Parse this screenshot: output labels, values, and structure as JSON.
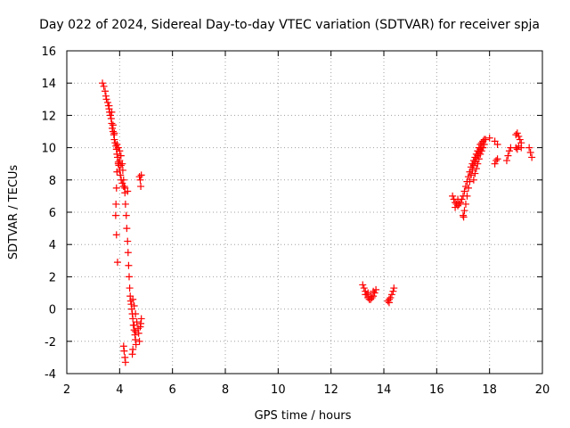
{
  "chart_data": {
    "type": "scatter",
    "title": "Day 022 of 2024, Sidereal Day-to-day VTEC variation (SDTVAR) for receiver spja",
    "xlabel": "GPS time / hours",
    "ylabel": "SDTVAR / TECUs",
    "xlim": [
      2,
      20
    ],
    "ylim": [
      -4,
      16
    ],
    "xticks": [
      2,
      4,
      6,
      8,
      10,
      12,
      14,
      16,
      18,
      20
    ],
    "yticks": [
      -4,
      -2,
      0,
      2,
      4,
      6,
      8,
      10,
      12,
      14,
      16
    ],
    "grid": true,
    "marker": "+",
    "color": "#ff0000",
    "series": [
      {
        "name": "SDTVAR",
        "points": [
          [
            3.35,
            14.0
          ],
          [
            3.4,
            13.8
          ],
          [
            3.45,
            13.5
          ],
          [
            3.48,
            13.2
          ],
          [
            3.5,
            13.0
          ],
          [
            3.55,
            12.8
          ],
          [
            3.58,
            12.6
          ],
          [
            3.6,
            12.4
          ],
          [
            3.62,
            12.2
          ],
          [
            3.65,
            12.0
          ],
          [
            3.68,
            11.8
          ],
          [
            3.7,
            11.5
          ],
          [
            3.72,
            11.2
          ],
          [
            3.75,
            11.0
          ],
          [
            3.78,
            10.8
          ],
          [
            3.8,
            10.5
          ],
          [
            3.83,
            10.3
          ],
          [
            3.86,
            10.1
          ],
          [
            3.88,
            9.9
          ],
          [
            3.9,
            9.6
          ],
          [
            3.92,
            9.4
          ],
          [
            3.95,
            9.1
          ],
          [
            3.97,
            8.9
          ],
          [
            4.0,
            8.6
          ],
          [
            4.03,
            8.3
          ],
          [
            4.06,
            8.0
          ],
          [
            4.1,
            7.8
          ],
          [
            4.15,
            7.6
          ],
          [
            4.2,
            7.5
          ],
          [
            4.3,
            7.3
          ],
          [
            3.6,
            12.6
          ],
          [
            3.7,
            12.2
          ],
          [
            3.75,
            11.4
          ],
          [
            3.8,
            10.9
          ],
          [
            3.9,
            10.2
          ],
          [
            3.95,
            10.0
          ],
          [
            4.0,
            9.8
          ],
          [
            4.05,
            9.5
          ],
          [
            4.1,
            9.0
          ],
          [
            4.12,
            8.6
          ],
          [
            4.15,
            8.0
          ],
          [
            4.18,
            7.6
          ],
          [
            3.95,
            9.0
          ],
          [
            3.9,
            8.5
          ],
          [
            3.88,
            7.5
          ],
          [
            3.86,
            6.5
          ],
          [
            3.85,
            5.8
          ],
          [
            3.88,
            4.6
          ],
          [
            3.92,
            2.9
          ],
          [
            4.0,
            9.2
          ],
          [
            4.05,
            8.9
          ],
          [
            4.2,
            7.2
          ],
          [
            4.22,
            6.5
          ],
          [
            4.25,
            5.8
          ],
          [
            4.27,
            5.0
          ],
          [
            4.3,
            4.2
          ],
          [
            4.32,
            3.5
          ],
          [
            4.34,
            2.7
          ],
          [
            4.36,
            2.0
          ],
          [
            4.38,
            1.3
          ],
          [
            4.4,
            0.8
          ],
          [
            4.42,
            0.5
          ],
          [
            4.44,
            0.3
          ],
          [
            4.46,
            0.0
          ],
          [
            4.48,
            -0.3
          ],
          [
            4.5,
            -0.6
          ],
          [
            4.52,
            -1.0
          ],
          [
            4.55,
            -1.3
          ],
          [
            4.58,
            -1.6
          ],
          [
            4.6,
            -1.9
          ],
          [
            4.62,
            -2.2
          ],
          [
            4.5,
            -2.5
          ],
          [
            4.48,
            -2.8
          ],
          [
            4.5,
            0.6
          ],
          [
            4.55,
            0.2
          ],
          [
            4.6,
            -0.3
          ],
          [
            4.65,
            -0.8
          ],
          [
            4.7,
            -1.2
          ],
          [
            4.72,
            -1.5
          ],
          [
            4.75,
            -2.0
          ],
          [
            4.6,
            -1.4
          ],
          [
            4.55,
            -1.0
          ],
          [
            4.8,
            -0.9
          ],
          [
            4.82,
            -0.6
          ],
          [
            4.78,
            -1.1
          ],
          [
            4.15,
            -2.3
          ],
          [
            4.17,
            -2.6
          ],
          [
            4.2,
            -3.0
          ],
          [
            4.22,
            -3.3
          ],
          [
            4.75,
            8.2
          ],
          [
            4.78,
            8.0
          ],
          [
            4.8,
            7.6
          ],
          [
            4.82,
            8.3
          ],
          [
            13.2,
            1.5
          ],
          [
            13.25,
            1.3
          ],
          [
            13.3,
            1.1
          ],
          [
            13.35,
            0.9
          ],
          [
            13.4,
            0.7
          ],
          [
            13.45,
            0.6
          ],
          [
            13.5,
            0.6
          ],
          [
            13.55,
            0.7
          ],
          [
            13.6,
            0.8
          ],
          [
            13.65,
            1.0
          ],
          [
            13.7,
            1.2
          ],
          [
            13.3,
            0.9
          ],
          [
            13.4,
            1.0
          ],
          [
            13.5,
            0.8
          ],
          [
            13.6,
            1.1
          ],
          [
            14.15,
            0.5
          ],
          [
            14.2,
            0.6
          ],
          [
            14.25,
            0.7
          ],
          [
            14.3,
            0.9
          ],
          [
            14.35,
            1.1
          ],
          [
            14.38,
            1.3
          ],
          [
            14.2,
            0.4
          ],
          [
            16.6,
            7.0
          ],
          [
            16.65,
            6.8
          ],
          [
            16.7,
            6.6
          ],
          [
            16.75,
            6.5
          ],
          [
            16.8,
            6.4
          ],
          [
            16.85,
            6.5
          ],
          [
            16.9,
            6.6
          ],
          [
            16.95,
            6.8
          ],
          [
            17.0,
            7.0
          ],
          [
            17.05,
            7.3
          ],
          [
            17.1,
            7.6
          ],
          [
            17.15,
            7.9
          ],
          [
            17.2,
            8.2
          ],
          [
            17.25,
            8.5
          ],
          [
            17.3,
            8.8
          ],
          [
            17.35,
            9.0
          ],
          [
            17.4,
            9.2
          ],
          [
            17.45,
            9.4
          ],
          [
            17.5,
            9.6
          ],
          [
            17.55,
            9.8
          ],
          [
            17.6,
            10.0
          ],
          [
            17.65,
            10.2
          ],
          [
            17.7,
            10.3
          ],
          [
            17.75,
            10.4
          ],
          [
            17.8,
            10.5
          ],
          [
            17.85,
            10.5
          ],
          [
            16.7,
            6.3
          ],
          [
            16.8,
            6.8
          ],
          [
            17.0,
            5.8
          ],
          [
            17.05,
            6.1
          ],
          [
            17.1,
            6.5
          ],
          [
            17.15,
            7.0
          ],
          [
            17.2,
            7.5
          ],
          [
            17.25,
            7.9
          ],
          [
            17.3,
            8.3
          ],
          [
            17.35,
            8.6
          ],
          [
            17.4,
            8.9
          ],
          [
            17.45,
            9.1
          ],
          [
            17.5,
            9.3
          ],
          [
            17.55,
            9.5
          ],
          [
            17.6,
            9.7
          ],
          [
            17.65,
            9.9
          ],
          [
            17.7,
            10.0
          ],
          [
            17.02,
            5.7
          ],
          [
            17.4,
            8.0
          ],
          [
            17.45,
            8.4
          ],
          [
            17.5,
            8.7
          ],
          [
            17.55,
            9.0
          ],
          [
            17.6,
            9.3
          ],
          [
            17.65,
            9.6
          ],
          [
            17.7,
            9.8
          ],
          [
            17.75,
            10.0
          ],
          [
            17.8,
            10.2
          ],
          [
            18.0,
            10.6
          ],
          [
            18.2,
            10.4
          ],
          [
            18.3,
            10.2
          ],
          [
            18.2,
            9.0
          ],
          [
            18.25,
            9.2
          ],
          [
            18.3,
            9.3
          ],
          [
            18.7,
            9.5
          ],
          [
            18.75,
            9.8
          ],
          [
            18.8,
            10.0
          ],
          [
            18.65,
            9.2
          ],
          [
            19.0,
            10.8
          ],
          [
            19.05,
            10.9
          ],
          [
            19.1,
            10.7
          ],
          [
            19.15,
            10.5
          ],
          [
            19.2,
            10.3
          ],
          [
            19.0,
            10.0
          ],
          [
            19.05,
            9.9
          ],
          [
            19.1,
            10.1
          ],
          [
            19.2,
            10.0
          ],
          [
            19.5,
            10.0
          ],
          [
            19.55,
            9.7
          ],
          [
            19.6,
            9.4
          ]
        ]
      }
    ]
  }
}
